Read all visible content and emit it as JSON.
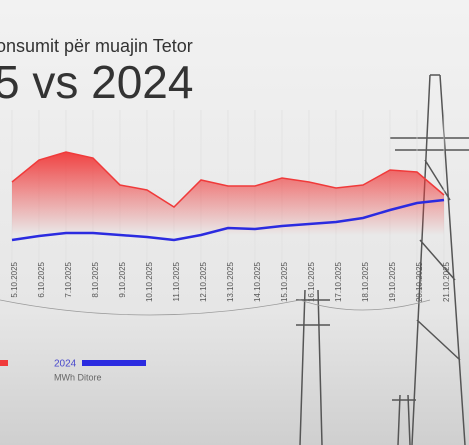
{
  "chart_data": {
    "type": "line",
    "title": "onsumit për muajin Tetor",
    "subtitle": "5 vs 2024",
    "categories": [
      "5.10.2025",
      "6.10.2025",
      "7.10.2025",
      "8.10.2025",
      "9.10.2025",
      "10.10.2025",
      "11.10.2025",
      "12.10.2025",
      "13.10.2025",
      "14.10.2025",
      "15.10.2025",
      "16.10.2025",
      "17.10.2025",
      "18.10.2025",
      "19.10.2025",
      "20.10.2025",
      "21.10.2025"
    ],
    "series": [
      {
        "color": "#f03a3a",
        "values": [
          78,
          100,
          108,
          102,
          75,
          70,
          53,
          80,
          74,
          74,
          82,
          78,
          72,
          75,
          90,
          88,
          65
        ]
      },
      {
        "name": "2024",
        "color": "#2b2be0",
        "values": [
          20,
          24,
          27,
          27,
          25,
          23,
          20,
          25,
          32,
          31,
          34,
          36,
          38,
          42,
          50,
          57,
          60
        ]
      }
    ],
    "legend_unit": "MWh Ditore",
    "ylim": [
      0,
      260
    ]
  }
}
